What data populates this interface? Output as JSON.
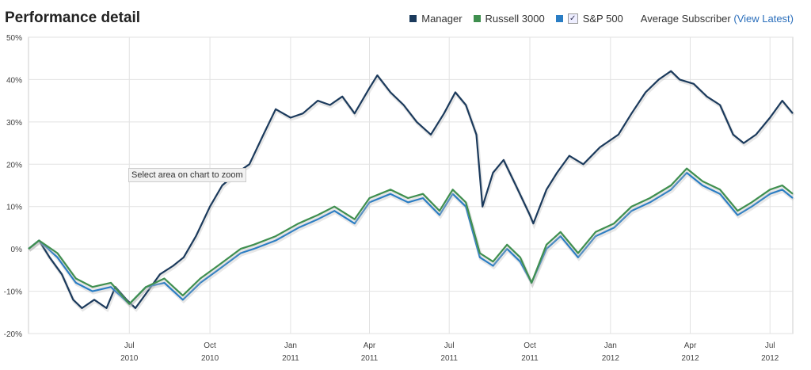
{
  "title": "Performance detail",
  "legend": {
    "items": [
      {
        "name": "Manager",
        "color": "#1b3a5c"
      },
      {
        "name": "Russell 3000",
        "color": "#3f8f4f"
      },
      {
        "name": "S&P 500",
        "color": "#2a7dc4",
        "checked": true
      }
    ],
    "subscriber_label": "Average Subscriber",
    "view_latest_label": "(View Latest)"
  },
  "tooltip": "Select area on chart to zoom",
  "chart_data": {
    "type": "line",
    "xlim": [
      "2010-03-08",
      "2012-07-27"
    ],
    "ylim": [
      -20,
      50
    ],
    "y_ticks": [
      -20,
      -10,
      0,
      10,
      20,
      30,
      40,
      50
    ],
    "y_tick_labels": [
      "-20%",
      "-10%",
      "0%",
      "10%",
      "20%",
      "30%",
      "40%",
      "50%"
    ],
    "x_ticks": [
      {
        "date": "2010-07-01",
        "month": "Jul",
        "year": "2010"
      },
      {
        "date": "2010-10-01",
        "month": "Oct",
        "year": "2010"
      },
      {
        "date": "2011-01-01",
        "month": "Jan",
        "year": "2011"
      },
      {
        "date": "2011-04-01",
        "month": "Apr",
        "year": "2011"
      },
      {
        "date": "2011-07-01",
        "month": "Jul",
        "year": "2011"
      },
      {
        "date": "2011-10-01",
        "month": "Oct",
        "year": "2011"
      },
      {
        "date": "2012-01-01",
        "month": "Jan",
        "year": "2012"
      },
      {
        "date": "2012-04-01",
        "month": "Apr",
        "year": "2012"
      },
      {
        "date": "2012-07-01",
        "month": "Jul",
        "year": "2012"
      }
    ],
    "grid": true,
    "series": [
      {
        "name": "Manager",
        "color": "#1b3a5c",
        "points": [
          [
            "2010-03-08",
            0
          ],
          [
            "2010-03-20",
            2
          ],
          [
            "2010-04-01",
            -2
          ],
          [
            "2010-04-15",
            -6
          ],
          [
            "2010-04-28",
            -12
          ],
          [
            "2010-05-08",
            -14
          ],
          [
            "2010-05-22",
            -12
          ],
          [
            "2010-06-05",
            -14
          ],
          [
            "2010-06-15",
            -9
          ],
          [
            "2010-06-28",
            -12
          ],
          [
            "2010-07-08",
            -14
          ],
          [
            "2010-07-22",
            -10
          ],
          [
            "2010-08-05",
            -6
          ],
          [
            "2010-08-20",
            -4
          ],
          [
            "2010-09-01",
            -2
          ],
          [
            "2010-09-15",
            3
          ],
          [
            "2010-10-01",
            10
          ],
          [
            "2010-10-15",
            15
          ],
          [
            "2010-11-01",
            18
          ],
          [
            "2010-11-15",
            20
          ],
          [
            "2010-12-01",
            27
          ],
          [
            "2010-12-15",
            33
          ],
          [
            "2011-01-01",
            31
          ],
          [
            "2011-01-15",
            32
          ],
          [
            "2011-02-01",
            35
          ],
          [
            "2011-02-15",
            34
          ],
          [
            "2011-03-01",
            36
          ],
          [
            "2011-03-15",
            32
          ],
          [
            "2011-04-01",
            38
          ],
          [
            "2011-04-10",
            41
          ],
          [
            "2011-04-25",
            37
          ],
          [
            "2011-05-10",
            34
          ],
          [
            "2011-05-25",
            30
          ],
          [
            "2011-06-10",
            27
          ],
          [
            "2011-06-25",
            32
          ],
          [
            "2011-07-08",
            37
          ],
          [
            "2011-07-20",
            34
          ],
          [
            "2011-08-01",
            27
          ],
          [
            "2011-08-08",
            10
          ],
          [
            "2011-08-20",
            18
          ],
          [
            "2011-09-01",
            21
          ],
          [
            "2011-09-15",
            15
          ],
          [
            "2011-10-01",
            8
          ],
          [
            "2011-10-05",
            6
          ],
          [
            "2011-10-20",
            14
          ],
          [
            "2011-11-01",
            18
          ],
          [
            "2011-11-15",
            22
          ],
          [
            "2011-12-01",
            20
          ],
          [
            "2011-12-20",
            24
          ],
          [
            "2012-01-10",
            27
          ],
          [
            "2012-01-25",
            32
          ],
          [
            "2012-02-10",
            37
          ],
          [
            "2012-02-25",
            40
          ],
          [
            "2012-03-10",
            42
          ],
          [
            "2012-03-20",
            40
          ],
          [
            "2012-04-05",
            39
          ],
          [
            "2012-04-20",
            36
          ],
          [
            "2012-05-05",
            34
          ],
          [
            "2012-05-20",
            27
          ],
          [
            "2012-06-01",
            25
          ],
          [
            "2012-06-15",
            27
          ],
          [
            "2012-07-01",
            31
          ],
          [
            "2012-07-15",
            35
          ],
          [
            "2012-07-27",
            32
          ]
        ]
      },
      {
        "name": "S&P 500",
        "color": "#2a7dc4",
        "points": [
          [
            "2010-03-08",
            0
          ],
          [
            "2010-03-20",
            2
          ],
          [
            "2010-04-10",
            -2
          ],
          [
            "2010-05-01",
            -8
          ],
          [
            "2010-05-20",
            -10
          ],
          [
            "2010-06-10",
            -9
          ],
          [
            "2010-07-01",
            -13
          ],
          [
            "2010-07-20",
            -9
          ],
          [
            "2010-08-10",
            -8
          ],
          [
            "2010-08-31",
            -12
          ],
          [
            "2010-09-20",
            -8
          ],
          [
            "2010-10-10",
            -5
          ],
          [
            "2010-11-05",
            -1
          ],
          [
            "2010-11-20",
            0
          ],
          [
            "2010-12-15",
            2
          ],
          [
            "2011-01-10",
            5
          ],
          [
            "2011-02-01",
            7
          ],
          [
            "2011-02-20",
            9
          ],
          [
            "2011-03-15",
            6
          ],
          [
            "2011-04-01",
            11
          ],
          [
            "2011-04-25",
            13
          ],
          [
            "2011-05-15",
            11
          ],
          [
            "2011-06-01",
            12
          ],
          [
            "2011-06-20",
            8
          ],
          [
            "2011-07-05",
            13
          ],
          [
            "2011-07-20",
            10
          ],
          [
            "2011-08-05",
            -2
          ],
          [
            "2011-08-20",
            -4
          ],
          [
            "2011-09-05",
            0
          ],
          [
            "2011-09-20",
            -3
          ],
          [
            "2011-10-03",
            -8
          ],
          [
            "2011-10-20",
            0
          ],
          [
            "2011-11-05",
            3
          ],
          [
            "2011-11-25",
            -2
          ],
          [
            "2011-12-15",
            3
          ],
          [
            "2012-01-05",
            5
          ],
          [
            "2012-01-25",
            9
          ],
          [
            "2012-02-15",
            11
          ],
          [
            "2012-03-10",
            14
          ],
          [
            "2012-03-28",
            18
          ],
          [
            "2012-04-15",
            15
          ],
          [
            "2012-05-05",
            13
          ],
          [
            "2012-05-25",
            8
          ],
          [
            "2012-06-10",
            10
          ],
          [
            "2012-07-01",
            13
          ],
          [
            "2012-07-15",
            14
          ],
          [
            "2012-07-27",
            12
          ]
        ]
      },
      {
        "name": "Russell 3000",
        "color": "#3f8f4f",
        "points": [
          [
            "2010-03-08",
            0
          ],
          [
            "2010-03-20",
            2
          ],
          [
            "2010-04-10",
            -1
          ],
          [
            "2010-05-01",
            -7
          ],
          [
            "2010-05-20",
            -9
          ],
          [
            "2010-06-10",
            -8
          ],
          [
            "2010-07-01",
            -13
          ],
          [
            "2010-07-20",
            -9
          ],
          [
            "2010-08-10",
            -7
          ],
          [
            "2010-08-31",
            -11
          ],
          [
            "2010-09-20",
            -7
          ],
          [
            "2010-10-10",
            -4
          ],
          [
            "2010-11-05",
            0
          ],
          [
            "2010-11-20",
            1
          ],
          [
            "2010-12-15",
            3
          ],
          [
            "2011-01-10",
            6
          ],
          [
            "2011-02-01",
            8
          ],
          [
            "2011-02-20",
            10
          ],
          [
            "2011-03-15",
            7
          ],
          [
            "2011-04-01",
            12
          ],
          [
            "2011-04-25",
            14
          ],
          [
            "2011-05-15",
            12
          ],
          [
            "2011-06-01",
            13
          ],
          [
            "2011-06-20",
            9
          ],
          [
            "2011-07-05",
            14
          ],
          [
            "2011-07-20",
            11
          ],
          [
            "2011-08-05",
            -1
          ],
          [
            "2011-08-20",
            -3
          ],
          [
            "2011-09-05",
            1
          ],
          [
            "2011-09-20",
            -2
          ],
          [
            "2011-10-03",
            -8
          ],
          [
            "2011-10-20",
            1
          ],
          [
            "2011-11-05",
            4
          ],
          [
            "2011-11-25",
            -1
          ],
          [
            "2011-12-15",
            4
          ],
          [
            "2012-01-05",
            6
          ],
          [
            "2012-01-25",
            10
          ],
          [
            "2012-02-15",
            12
          ],
          [
            "2012-03-10",
            15
          ],
          [
            "2012-03-28",
            19
          ],
          [
            "2012-04-15",
            16
          ],
          [
            "2012-05-05",
            14
          ],
          [
            "2012-05-25",
            9
          ],
          [
            "2012-06-10",
            11
          ],
          [
            "2012-07-01",
            14
          ],
          [
            "2012-07-15",
            15
          ],
          [
            "2012-07-27",
            13
          ]
        ]
      }
    ]
  }
}
